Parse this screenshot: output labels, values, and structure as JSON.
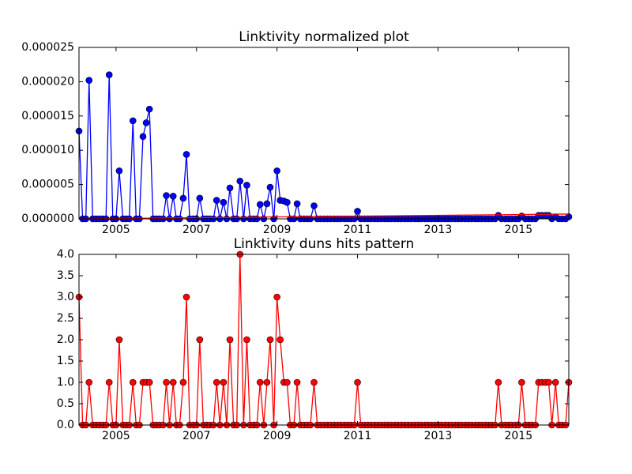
{
  "chart_data": [
    {
      "type": "line",
      "title": "Linktivity normalized plot",
      "x": [
        2004.08,
        2004.17,
        2004.25,
        2004.33,
        2004.42,
        2004.5,
        2004.58,
        2004.67,
        2004.75,
        2004.83,
        2004.92,
        2005.0,
        2005.08,
        2005.17,
        2005.25,
        2005.33,
        2005.42,
        2005.5,
        2005.58,
        2005.67,
        2005.75,
        2005.83,
        2005.92,
        2006.0,
        2006.08,
        2006.17,
        2006.25,
        2006.33,
        2006.42,
        2006.5,
        2006.58,
        2006.67,
        2006.75,
        2006.83,
        2006.92,
        2007.0,
        2007.08,
        2007.17,
        2007.25,
        2007.33,
        2007.42,
        2007.5,
        2007.58,
        2007.67,
        2007.75,
        2007.83,
        2007.92,
        2008.0,
        2008.08,
        2008.17,
        2008.25,
        2008.33,
        2008.42,
        2008.5,
        2008.58,
        2008.67,
        2008.75,
        2008.83,
        2008.92,
        2009.0,
        2009.08,
        2009.17,
        2009.25,
        2009.33,
        2009.42,
        2009.5,
        2009.58,
        2009.67,
        2009.75,
        2009.83,
        2009.92,
        2010.0,
        2010.08,
        2010.17,
        2010.25,
        2010.33,
        2010.42,
        2010.5,
        2010.58,
        2010.67,
        2010.75,
        2010.83,
        2010.92,
        2011.0,
        2011.08,
        2011.17,
        2011.25,
        2011.33,
        2011.42,
        2011.5,
        2011.58,
        2011.67,
        2011.75,
        2011.83,
        2011.92,
        2012.0,
        2012.08,
        2012.17,
        2012.25,
        2012.33,
        2012.42,
        2012.5,
        2012.58,
        2012.67,
        2012.75,
        2012.83,
        2012.92,
        2013.0,
        2013.08,
        2013.17,
        2013.25,
        2013.33,
        2013.42,
        2013.5,
        2013.58,
        2013.67,
        2013.75,
        2013.83,
        2013.92,
        2014.0,
        2014.08,
        2014.17,
        2014.25,
        2014.33,
        2014.42,
        2014.5,
        2014.58,
        2014.67,
        2014.75,
        2014.83,
        2014.92,
        2015.0,
        2015.08,
        2015.17,
        2015.25,
        2015.33,
        2015.42,
        2015.5,
        2015.58,
        2015.67,
        2015.75,
        2015.83,
        2015.92,
        2016.0,
        2016.08,
        2016.17,
        2016.25
      ],
      "series": [
        {
          "color": "#0000ff",
          "marker": true,
          "values": [
            1.28e-05,
            0,
            0,
            2.02e-05,
            0,
            0,
            0,
            0,
            0,
            2.1e-05,
            0,
            0,
            7e-06,
            0,
            0,
            0,
            1.43e-05,
            0,
            0,
            1.2e-05,
            1.4e-05,
            1.6e-05,
            0,
            0,
            0,
            0,
            3.4e-06,
            0,
            3.3e-06,
            0,
            0,
            3e-06,
            9.4e-06,
            0,
            0,
            0,
            3e-06,
            0,
            0,
            0,
            0,
            2.7e-06,
            0,
            2.4e-06,
            0,
            4.5e-06,
            0,
            0,
            5.5e-06,
            0,
            4.9e-06,
            0,
            0,
            0,
            2.1e-06,
            0,
            2.2e-06,
            4.6e-06,
            0,
            7e-06,
            2.7e-06,
            2.6e-06,
            2.4e-06,
            0,
            0,
            2.2e-06,
            0,
            0,
            0,
            0,
            1.9e-06,
            0,
            0,
            0,
            0,
            0,
            0,
            0,
            0,
            0,
            0,
            0,
            0,
            1.1e-06,
            0,
            0,
            0,
            0,
            0,
            0,
            0,
            0,
            0,
            0,
            0,
            0,
            0,
            0,
            0,
            0,
            0,
            0,
            0,
            0,
            0,
            0,
            0,
            0,
            0,
            0,
            0,
            0,
            0,
            0,
            0,
            0,
            0,
            0,
            0,
            0,
            0,
            0,
            0,
            0,
            0,
            5e-07,
            0,
            0,
            0,
            0,
            0,
            0,
            4e-07,
            0,
            0,
            0,
            0,
            5e-07,
            5e-07,
            5e-07,
            5e-07,
            0,
            3e-07,
            0,
            0,
            0,
            3e-07
          ]
        },
        {
          "color": "#ff0000",
          "marker": false,
          "x": [
            2004.08,
            2016.25
          ],
          "values": [
            0,
            7e-07
          ]
        }
      ],
      "xlim": [
        2004.08,
        2016.25
      ],
      "ylim": [
        0,
        2.5e-05
      ],
      "xticks": [
        2005,
        2007,
        2009,
        2011,
        2013,
        2015
      ],
      "yticks": [
        {
          "value": 0,
          "label": "0.000000"
        },
        {
          "value": 5e-06,
          "label": "0.000005"
        },
        {
          "value": 1e-05,
          "label": "0.000010"
        },
        {
          "value": 1.5e-05,
          "label": "0.000015"
        },
        {
          "value": 2e-05,
          "label": "0.000020"
        },
        {
          "value": 2.5e-05,
          "label": "0.000025"
        }
      ]
    },
    {
      "type": "line",
      "title": "Linktivity duns hits pattern",
      "x": [
        2004.08,
        2004.17,
        2004.25,
        2004.33,
        2004.42,
        2004.5,
        2004.58,
        2004.67,
        2004.75,
        2004.83,
        2004.92,
        2005.0,
        2005.08,
        2005.17,
        2005.25,
        2005.33,
        2005.42,
        2005.5,
        2005.58,
        2005.67,
        2005.75,
        2005.83,
        2005.92,
        2006.0,
        2006.08,
        2006.17,
        2006.25,
        2006.33,
        2006.42,
        2006.5,
        2006.58,
        2006.67,
        2006.75,
        2006.83,
        2006.92,
        2007.0,
        2007.08,
        2007.17,
        2007.25,
        2007.33,
        2007.42,
        2007.5,
        2007.58,
        2007.67,
        2007.75,
        2007.83,
        2007.92,
        2008.0,
        2008.08,
        2008.17,
        2008.25,
        2008.33,
        2008.42,
        2008.5,
        2008.58,
        2008.67,
        2008.75,
        2008.83,
        2008.92,
        2009.0,
        2009.08,
        2009.17,
        2009.25,
        2009.33,
        2009.42,
        2009.5,
        2009.58,
        2009.67,
        2009.75,
        2009.83,
        2009.92,
        2010.0,
        2010.08,
        2010.17,
        2010.25,
        2010.33,
        2010.42,
        2010.5,
        2010.58,
        2010.67,
        2010.75,
        2010.83,
        2010.92,
        2011.0,
        2011.08,
        2011.17,
        2011.25,
        2011.33,
        2011.42,
        2011.5,
        2011.58,
        2011.67,
        2011.75,
        2011.83,
        2011.92,
        2012.0,
        2012.08,
        2012.17,
        2012.25,
        2012.33,
        2012.42,
        2012.5,
        2012.58,
        2012.67,
        2012.75,
        2012.83,
        2012.92,
        2013.0,
        2013.08,
        2013.17,
        2013.25,
        2013.33,
        2013.42,
        2013.5,
        2013.58,
        2013.67,
        2013.75,
        2013.83,
        2013.92,
        2014.0,
        2014.08,
        2014.17,
        2014.25,
        2014.33,
        2014.42,
        2014.5,
        2014.58,
        2014.67,
        2014.75,
        2014.83,
        2014.92,
        2015.0,
        2015.08,
        2015.17,
        2015.25,
        2015.33,
        2015.42,
        2015.5,
        2015.58,
        2015.67,
        2015.75,
        2015.83,
        2015.92,
        2016.0,
        2016.08,
        2016.17,
        2016.25
      ],
      "series": [
        {
          "color": "#ff0000",
          "marker": true,
          "values": [
            3,
            0,
            0,
            1,
            0,
            0,
            0,
            0,
            0,
            1,
            0,
            0,
            2,
            0,
            0,
            0,
            1,
            0,
            0,
            1,
            1,
            1,
            0,
            0,
            0,
            0,
            1,
            0,
            1,
            0,
            0,
            1,
            3,
            0,
            0,
            0,
            2,
            0,
            0,
            0,
            0,
            1,
            0,
            1,
            0,
            2,
            0,
            0,
            4,
            0,
            2,
            0,
            0,
            0,
            1,
            0,
            1,
            2,
            0,
            3,
            2,
            1,
            1,
            0,
            0,
            1,
            0,
            0,
            0,
            0,
            1,
            0,
            0,
            0,
            0,
            0,
            0,
            0,
            0,
            0,
            0,
            0,
            0,
            1,
            0,
            0,
            0,
            0,
            0,
            0,
            0,
            0,
            0,
            0,
            0,
            0,
            0,
            0,
            0,
            0,
            0,
            0,
            0,
            0,
            0,
            0,
            0,
            0,
            0,
            0,
            0,
            0,
            0,
            0,
            0,
            0,
            0,
            0,
            0,
            0,
            0,
            0,
            0,
            0,
            0,
            1,
            0,
            0,
            0,
            0,
            0,
            0,
            1,
            0,
            0,
            0,
            0,
            1,
            1,
            1,
            1,
            0,
            1,
            0,
            0,
            0,
            1
          ]
        }
      ],
      "xlim": [
        2004.08,
        2016.25
      ],
      "ylim": [
        0,
        4
      ],
      "xticks": [
        2005,
        2007,
        2009,
        2011,
        2013,
        2015
      ],
      "yticks": [
        {
          "value": 0,
          "label": "0.0"
        },
        0.5,
        {
          "value": 1,
          "label": "1.0"
        },
        1.5,
        {
          "value": 2,
          "label": "2.0"
        },
        2.5,
        {
          "value": 3,
          "label": "3.0"
        },
        3.5,
        {
          "value": 4,
          "label": "4.0"
        }
      ]
    }
  ]
}
